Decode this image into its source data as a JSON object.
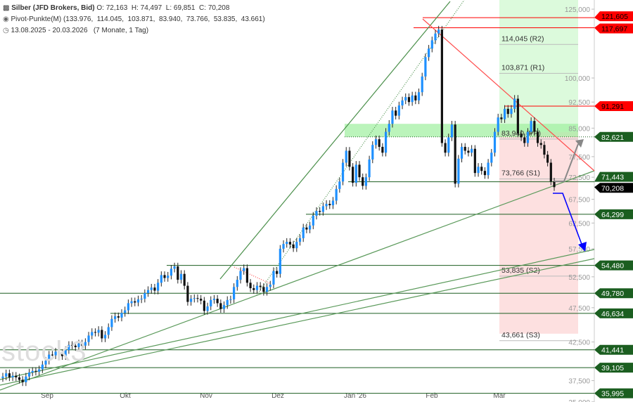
{
  "header": {
    "instrument_icon": "candlestick-icon",
    "title": "Silber (JFD Brokers, Bid)",
    "ohlc": "O: 72,163  H: 74,497  L: 69,851  C: 70,208",
    "indicator_icon": "radio-dot-icon",
    "indicator": "Pivot-Punkte(M) (133.976,  114.045,  103.871,  83.940,  73.766,  53.835,  43.661)",
    "range_icon": "clock-icon",
    "range": "13.08.2025 - 20.03.2026   (7 Monate, 1 Tag)"
  },
  "watermark": "stock3",
  "chart_data": {
    "type": "candlestick",
    "scale": "log",
    "ylim": [
      35000,
      128000
    ],
    "y_ticks": [
      "125,000",
      "100,000",
      "92,500",
      "85,000",
      "77,500",
      "72,500",
      "67,500",
      "62,500",
      "57,500",
      "52,500",
      "47,500",
      "42,500",
      "37,500",
      "35,000"
    ],
    "y_tick_values": [
      125,
      100,
      92.5,
      85,
      77.5,
      72.5,
      67.5,
      62.5,
      57.5,
      52.5,
      47.5,
      42.5,
      37.5,
      35
    ],
    "x_ticks": [
      "Sep",
      "Okt",
      "Nov",
      "Dez",
      "Jan '26",
      "Feb",
      "Mar"
    ],
    "colors": {
      "up": "#1e90ff",
      "down": "#111111",
      "support": "#1b5e20",
      "resistance": "#ff0000",
      "last": "#000000"
    },
    "closes": [
      38.0,
      38.4,
      37.9,
      38.1,
      37.9,
      37.6,
      37.3,
      38.0,
      38.5,
      38.7,
      38.6,
      38.9,
      39.5,
      40.0,
      40.8,
      40.7,
      41.2,
      41.0,
      40.6,
      41.4,
      42.1,
      42.0,
      41.8,
      42.3,
      42.0,
      42.5,
      43.4,
      43.9,
      43.8,
      44.2,
      43.0,
      43.5,
      44.6,
      45.8,
      46.2,
      46.0,
      46.7,
      47.1,
      48.2,
      48.5,
      48.3,
      48.8,
      48.9,
      49.8,
      50.3,
      50.7,
      50.2,
      51.5,
      52.8,
      52.3,
      52.7,
      53.9,
      54.3,
      52.0,
      53.0,
      51.0,
      48.4,
      48.9,
      49.0,
      48.9,
      48.6,
      47.0,
      47.7,
      48.7,
      48.9,
      48.2,
      47.3,
      47.9,
      48.7,
      48.8,
      50.8,
      52.0,
      53.5,
      54.0,
      51.5,
      50.6,
      50.3,
      51.0,
      50.8,
      50.0,
      50.8,
      51.2,
      53.5,
      53.0,
      57.5,
      58.4,
      58.8,
      58.3,
      57.6,
      58.8,
      59.5,
      61.6,
      61.2,
      62.0,
      64.0,
      65.0,
      64.8,
      66.0,
      66.5,
      66.2,
      67.2,
      69.8,
      71.5,
      76.0,
      79.0,
      75.0,
      71.2,
      75.5,
      72.5,
      70.5,
      72.5,
      76.8,
      80.5,
      82.0,
      80.0,
      78.5,
      84.0,
      86.2,
      90.0,
      88.5,
      91.5,
      93.0,
      94.0,
      92.5,
      94.5,
      93.0,
      95.5,
      100.5,
      107.0,
      110.0,
      113.0,
      115.5,
      117.0,
      81.0,
      78.5,
      82.5,
      86.0,
      71.0,
      77.0,
      80.0,
      79.0,
      78.5,
      79.5,
      73.5,
      75.0,
      74.0,
      73.0,
      76.0,
      78.5,
      84.0,
      88.0,
      87.5,
      90.5,
      89.0,
      90.5,
      93.5,
      83.5,
      82.5,
      81.0,
      84.0,
      87.0,
      84.0,
      81.0,
      80.5,
      78.0,
      76.0,
      71.5,
      70.208
    ],
    "pivots": [
      {
        "label": "114,045 (R2)",
        "value": 114.045
      },
      {
        "label": "103,871 (R1)",
        "value": 103.871
      },
      {
        "label": "83,940 (PP)",
        "value": 83.94
      },
      {
        "label": "73,766 (S1)",
        "value": 73.766
      },
      {
        "label": "53,835 (S2)",
        "value": 53.835
      },
      {
        "label": "43,661 (S3)",
        "value": 43.661
      }
    ],
    "levels": [
      {
        "label": "121,605",
        "value": 121.605,
        "kind": "resistance"
      },
      {
        "label": "117,697",
        "value": 117.697,
        "kind": "resistance"
      },
      {
        "label": "91,291",
        "value": 91.291,
        "kind": "resistance"
      },
      {
        "label": "82,621",
        "value": 82.621,
        "kind": "support"
      },
      {
        "label": "71,443",
        "value": 71.443,
        "kind": "support"
      },
      {
        "label": "70,208",
        "value": 70.208,
        "kind": "last"
      },
      {
        "label": "64,299",
        "value": 64.299,
        "kind": "support"
      },
      {
        "label": "54,480",
        "value": 54.48,
        "kind": "support"
      },
      {
        "label": "49,780",
        "value": 49.78,
        "kind": "support"
      },
      {
        "label": "46,634",
        "value": 46.634,
        "kind": "support"
      },
      {
        "label": "41,441",
        "value": 41.441,
        "kind": "support"
      },
      {
        "label": "39,105",
        "value": 39.105,
        "kind": "support"
      },
      {
        "label": "35,995",
        "value": 35.995,
        "kind": "support"
      }
    ]
  }
}
